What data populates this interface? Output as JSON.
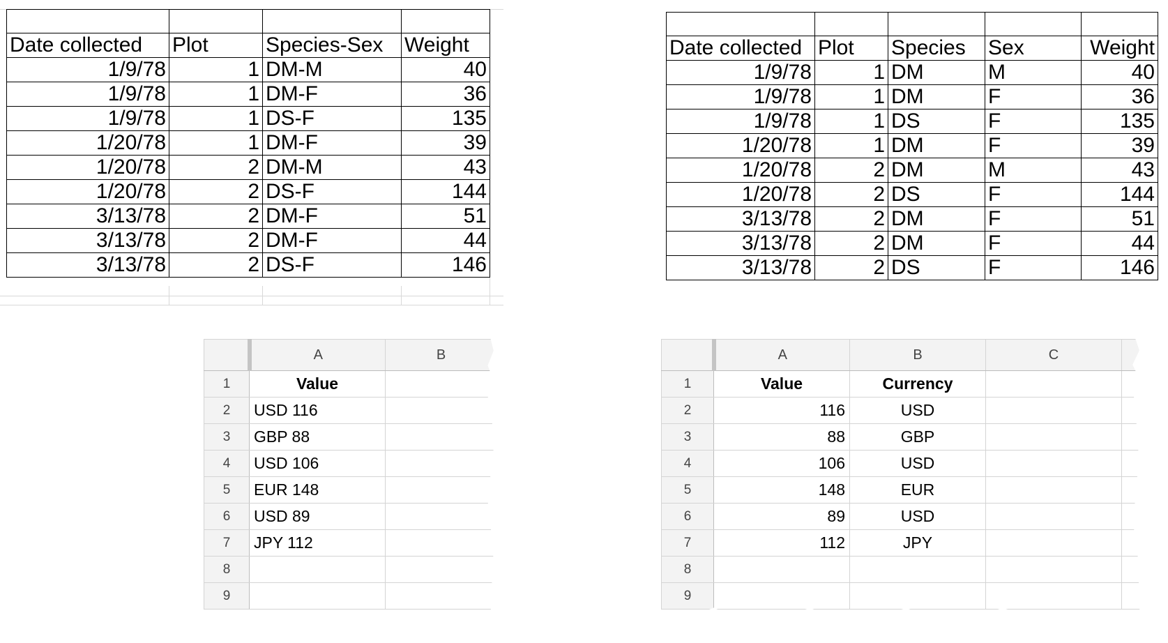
{
  "left_table": {
    "headers": [
      "Date collected",
      "Plot",
      "Species-Sex",
      "Weight"
    ],
    "rows": [
      [
        "1/9/78",
        "1",
        "DM-M",
        "40"
      ],
      [
        "1/9/78",
        "1",
        "DM-F",
        "36"
      ],
      [
        "1/9/78",
        "1",
        "DS-F",
        "135"
      ],
      [
        "1/20/78",
        "1",
        "DM-F",
        "39"
      ],
      [
        "1/20/78",
        "2",
        "DM-M",
        "43"
      ],
      [
        "1/20/78",
        "2",
        "DS-F",
        "144"
      ],
      [
        "3/13/78",
        "2",
        "DM-F",
        "51"
      ],
      [
        "3/13/78",
        "2",
        "DM-F",
        "44"
      ],
      [
        "3/13/78",
        "2",
        "DS-F",
        "146"
      ]
    ]
  },
  "right_table": {
    "headers": [
      "Date collected",
      "Plot",
      "Species",
      "Sex",
      "Weight"
    ],
    "rows": [
      [
        "1/9/78",
        "1",
        "DM",
        "M",
        "40"
      ],
      [
        "1/9/78",
        "1",
        "DM",
        "F",
        "36"
      ],
      [
        "1/9/78",
        "1",
        "DS",
        "F",
        "135"
      ],
      [
        "1/20/78",
        "1",
        "DM",
        "F",
        "39"
      ],
      [
        "1/20/78",
        "2",
        "DM",
        "M",
        "43"
      ],
      [
        "1/20/78",
        "2",
        "DS",
        "F",
        "144"
      ],
      [
        "3/13/78",
        "2",
        "DM",
        "F",
        "51"
      ],
      [
        "3/13/78",
        "2",
        "DM",
        "F",
        "44"
      ],
      [
        "3/13/78",
        "2",
        "DS",
        "F",
        "146"
      ]
    ]
  },
  "sheet_left": {
    "columns": [
      "A",
      "B"
    ],
    "row_numbers": [
      "1",
      "2",
      "3",
      "4",
      "5",
      "6",
      "7",
      "8",
      "9"
    ],
    "cells": [
      [
        "Value",
        ""
      ],
      [
        "USD 116",
        ""
      ],
      [
        "GBP 88",
        ""
      ],
      [
        "USD 106",
        ""
      ],
      [
        "EUR 148",
        ""
      ],
      [
        "USD 89",
        ""
      ],
      [
        "JPY 112",
        ""
      ],
      [
        "",
        ""
      ],
      [
        "",
        ""
      ]
    ]
  },
  "sheet_right": {
    "columns": [
      "A",
      "B",
      "C"
    ],
    "row_numbers": [
      "1",
      "2",
      "3",
      "4",
      "5",
      "6",
      "7",
      "8",
      "9"
    ],
    "cells": [
      [
        "Value",
        "Currency",
        ""
      ],
      [
        "116",
        "USD",
        ""
      ],
      [
        "88",
        "GBP",
        ""
      ],
      [
        "106",
        "USD",
        ""
      ],
      [
        "148",
        "EUR",
        ""
      ],
      [
        "89",
        "USD",
        ""
      ],
      [
        "112",
        "JPY",
        ""
      ],
      [
        "",
        "",
        ""
      ],
      [
        "",
        "",
        ""
      ]
    ]
  },
  "colors": {
    "gridline": "#d4d4d4",
    "header_bg": "#f3f3f3",
    "border": "#000000"
  }
}
